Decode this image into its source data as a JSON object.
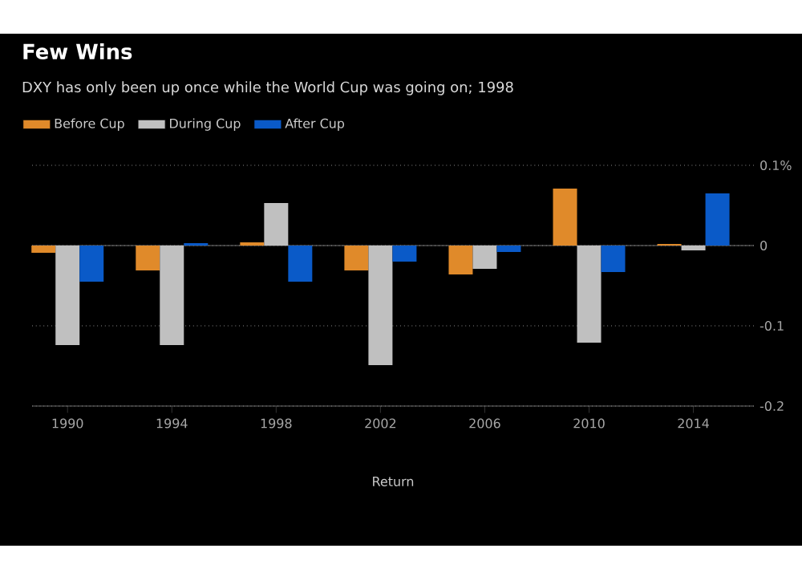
{
  "chart_data": {
    "type": "bar",
    "title": "Few Wins",
    "subtitle": "DXY has only been up once while the World Cup was going on; 1998",
    "xlabel": "Return",
    "categories": [
      "1990",
      "1994",
      "1998",
      "2002",
      "2006",
      "2010",
      "2014"
    ],
    "series": [
      {
        "name": "Before Cup",
        "color": "#e08a2a",
        "values": [
          -0.009,
          -0.031,
          0.004,
          -0.031,
          -0.036,
          0.071,
          0.002
        ]
      },
      {
        "name": "During Cup",
        "color": "#c0c0c0",
        "values": [
          -0.124,
          -0.124,
          0.053,
          -0.149,
          -0.029,
          -0.121,
          -0.006
        ]
      },
      {
        "name": "After Cup",
        "color": "#0a5ac8",
        "values": [
          -0.045,
          0.003,
          -0.045,
          -0.02,
          -0.008,
          -0.033,
          0.065
        ]
      }
    ],
    "ylim": [
      -0.2,
      0.1
    ],
    "yticks": [
      {
        "value": 0.1,
        "label": "0.1%"
      },
      0,
      -0.1,
      -0.2
    ],
    "grid": "y",
    "legend": "top left"
  }
}
